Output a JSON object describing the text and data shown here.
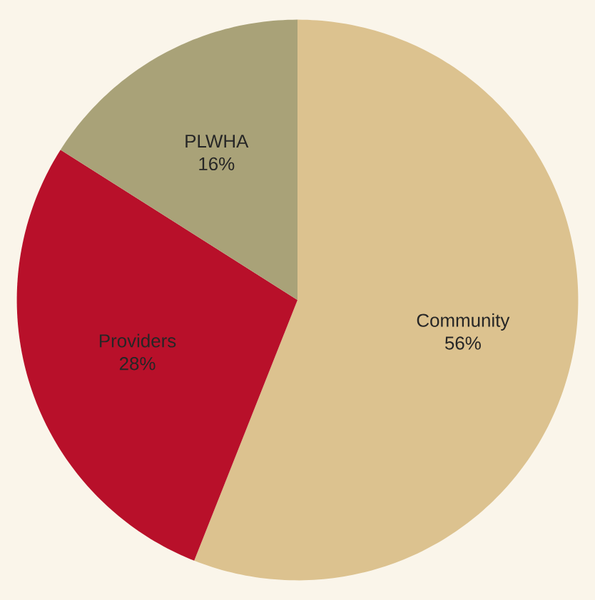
{
  "chart_data": {
    "type": "pie",
    "categories": [
      "Community",
      "Providers",
      "PLWHA"
    ],
    "values": [
      56,
      28,
      16
    ],
    "value_labels": [
      "56%",
      "28%",
      "16%"
    ],
    "colors": [
      "#dcc28f",
      "#b8102a",
      "#a9a278"
    ]
  }
}
